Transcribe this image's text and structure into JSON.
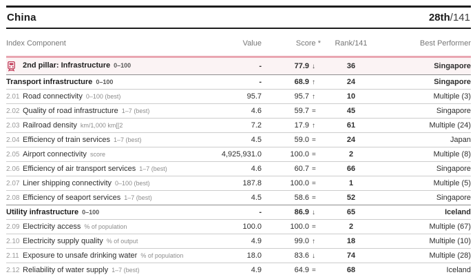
{
  "header": {
    "country": "China",
    "rank": "28th",
    "rank_total": "/141"
  },
  "colors": {
    "accent_pink": "#e9a6b1",
    "pillar_bg": "#fbf3f4",
    "brand_crimson": "#c13b58",
    "rule_dark": "#1c1c1c"
  },
  "columns": {
    "component": "Index Component",
    "value": "Value",
    "score": "Score *",
    "rank": "Rank/141",
    "best": "Best Performer"
  },
  "table": {
    "rows": [
      {
        "type": "pillar",
        "icon": "train-icon",
        "label": "2nd pillar: Infrastructure",
        "unit": "0–100",
        "value": "-",
        "score": "77.9",
        "trend": "↓",
        "rank": "36",
        "best": "Singapore"
      },
      {
        "type": "section",
        "label": "Transport infrastructure",
        "unit": "0–100",
        "value": "-",
        "score": "68.9",
        "trend": "↑",
        "rank": "24",
        "best": "Singapore"
      },
      {
        "type": "normal",
        "num": "2.01",
        "label": "Road connectivity",
        "unit": "0–100 (best)",
        "value": "95.7",
        "score": "95.7",
        "trend": "↑",
        "rank": "10",
        "best": "Multiple (3)"
      },
      {
        "type": "normal",
        "num": "2.02",
        "label": "Quality of road infrastructure",
        "unit": "1–7 (best)",
        "value": "4.6",
        "score": "59.7",
        "trend": "=",
        "rank": "45",
        "best": "Singapore"
      },
      {
        "type": "normal",
        "num": "2.03",
        "label": "Railroad density",
        "unit": "km/1,000 km[[2",
        "value": "7.2",
        "score": "17.9",
        "trend": "↑",
        "rank": "61",
        "best": "Multiple (24)"
      },
      {
        "type": "normal",
        "num": "2.04",
        "label": "Efficiency of train services",
        "unit": "1–7 (best)",
        "value": "4.5",
        "score": "59.0",
        "trend": "=",
        "rank": "24",
        "best": "Japan"
      },
      {
        "type": "normal",
        "num": "2.05",
        "label": "Airport connectivity",
        "unit": "score",
        "value": "4,925,931.0",
        "score": "100.0",
        "trend": "=",
        "rank": "2",
        "best": "Multiple (8)"
      },
      {
        "type": "normal",
        "num": "2.06",
        "label": "Efficiency of air transport services",
        "unit": "1–7 (best)",
        "value": "4.6",
        "score": "60.7",
        "trend": "=",
        "rank": "66",
        "best": "Singapore"
      },
      {
        "type": "normal",
        "num": "2.07",
        "label": "Liner shipping connectivity",
        "unit": "0–100 (best)",
        "value": "187.8",
        "score": "100.0",
        "trend": "=",
        "rank": "1",
        "best": "Multiple (5)"
      },
      {
        "type": "normal",
        "num": "2.08",
        "label": "Efficiency of seaport services",
        "unit": "1–7 (best)",
        "value": "4.5",
        "score": "58.6",
        "trend": "=",
        "rank": "52",
        "best": "Singapore"
      },
      {
        "type": "section",
        "label": "Utility infrastructure",
        "unit": "0–100",
        "value": "-",
        "score": "86.9",
        "trend": "↓",
        "rank": "65",
        "best": "Iceland"
      },
      {
        "type": "normal",
        "num": "2.09",
        "label": "Electricity access",
        "unit": "% of population",
        "value": "100.0",
        "score": "100.0",
        "trend": "=",
        "rank": "2",
        "best": "Multiple (67)"
      },
      {
        "type": "normal",
        "num": "2.10",
        "label": "Electricity supply quality",
        "unit": "% of output",
        "value": "4.9",
        "score": "99.0",
        "trend": "↑",
        "rank": "18",
        "best": "Multiple (10)"
      },
      {
        "type": "normal",
        "num": "2.11",
        "label": "Exposure to unsafe drinking water",
        "unit": "% of population",
        "value": "18.0",
        "score": "83.6",
        "trend": "↓",
        "rank": "74",
        "best": "Multiple (28)"
      },
      {
        "type": "normal",
        "num": "2.12",
        "label": "Reliability of water supply",
        "unit": "1–7 (best)",
        "value": "4.9",
        "score": "64.9",
        "trend": "=",
        "rank": "68",
        "best": "Iceland"
      }
    ]
  }
}
